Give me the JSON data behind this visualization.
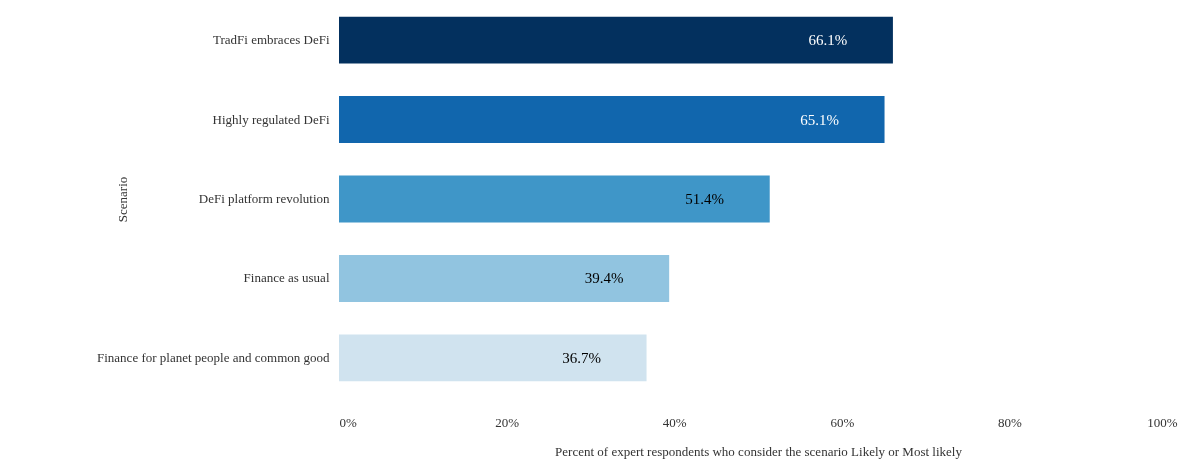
{
  "chart_data": {
    "type": "bar",
    "orientation": "horizontal",
    "ylabel": "Scenario",
    "xlabel": "Percent of expert respondents who consider the scenario Likely or Most likely",
    "categories": [
      "TradFi embraces DeFi",
      "Highly regulated DeFi",
      "DeFi platform revolution",
      "Finance as usual",
      "Finance for planet people and common good"
    ],
    "values": [
      66.1,
      65.1,
      51.4,
      39.4,
      36.7
    ],
    "colors": [
      "#03305e",
      "#1166ad",
      "#3f96c8",
      "#91c4e0",
      "#d0e3ef"
    ],
    "value_labels": [
      "66.1%",
      "65.1%",
      "51.4%",
      "39.4%",
      "36.7%"
    ],
    "xlim": [
      0,
      100
    ],
    "xticks": [
      {
        "value": 0,
        "label": "0%"
      },
      {
        "value": 20,
        "label": "20%"
      },
      {
        "value": 40,
        "label": "40%"
      },
      {
        "value": 60,
        "label": "60%"
      },
      {
        "value": 80,
        "label": "80%"
      },
      {
        "value": 100,
        "label": "100%"
      }
    ],
    "grid": false
  }
}
